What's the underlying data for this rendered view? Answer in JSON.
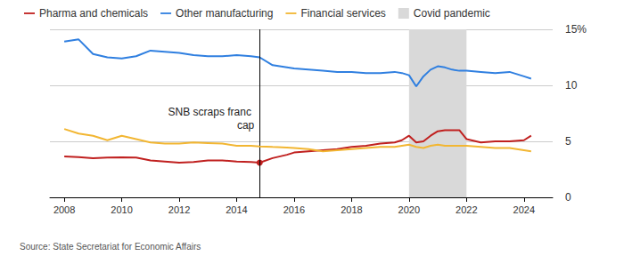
{
  "chart_data": {
    "type": "line",
    "source": "Source: State Secretariat for Economic Affairs",
    "x": [
      2008,
      2008.5,
      2009,
      2009.5,
      2010,
      2010.5,
      2011,
      2011.5,
      2012,
      2012.5,
      2013,
      2013.5,
      2014,
      2014.5,
      2014.8,
      2015.25,
      2015.75,
      2016,
      2016.5,
      2017,
      2017.5,
      2018,
      2018.5,
      2019,
      2019.5,
      2019.75,
      2020,
      2020.25,
      2020.5,
      2020.75,
      2021,
      2021.25,
      2021.5,
      2021.75,
      2022,
      2022.5,
      2023,
      2023.5,
      2024,
      2024.25
    ],
    "series": [
      {
        "name": "Pharma and chemicals",
        "color": "#c0201f",
        "values": [
          3.65,
          3.6,
          3.5,
          3.55,
          3.57,
          3.55,
          3.3,
          3.2,
          3.1,
          3.15,
          3.3,
          3.3,
          3.2,
          3.15,
          3.1,
          3.5,
          3.8,
          4.0,
          4.1,
          4.2,
          4.3,
          4.5,
          4.6,
          4.8,
          4.9,
          5.1,
          5.5,
          4.9,
          5.0,
          5.5,
          5.9,
          6.0,
          6.0,
          6.0,
          5.2,
          4.9,
          5.0,
          5.0,
          5.1,
          5.5
        ]
      },
      {
        "name": "Other manufacturing",
        "color": "#2f7fe0",
        "values": [
          13.9,
          14.1,
          12.8,
          12.5,
          12.4,
          12.6,
          13.1,
          13.0,
          12.9,
          12.7,
          12.6,
          12.6,
          12.7,
          12.6,
          12.5,
          11.8,
          11.6,
          11.5,
          11.4,
          11.3,
          11.2,
          11.2,
          11.1,
          11.1,
          11.2,
          11.1,
          10.9,
          9.9,
          10.8,
          11.4,
          11.7,
          11.6,
          11.4,
          11.3,
          11.3,
          11.2,
          11.1,
          11.2,
          10.8,
          10.6
        ]
      },
      {
        "name": "Financial services",
        "color": "#f2b632",
        "values": [
          6.1,
          5.7,
          5.5,
          5.1,
          5.5,
          5.2,
          4.9,
          4.8,
          4.8,
          4.9,
          4.85,
          4.8,
          4.6,
          4.6,
          4.55,
          4.5,
          4.45,
          4.4,
          4.3,
          4.1,
          4.2,
          4.3,
          4.4,
          4.5,
          4.5,
          4.6,
          4.7,
          4.5,
          4.4,
          4.6,
          4.7,
          4.6,
          4.6,
          4.6,
          4.6,
          4.5,
          4.4,
          4.4,
          4.2,
          4.1
        ]
      }
    ],
    "shaded_regions": [
      {
        "name": "Covid pandemic",
        "x": [
          2020,
          2022
        ],
        "color": "#d9d9d9"
      }
    ],
    "annotations": [
      {
        "text": "SNB scraps franc cap",
        "x": 2014.8,
        "series": "Pharma and chemicals"
      }
    ],
    "xlim": [
      2007.5,
      2025
    ],
    "xticks": [
      2008,
      2010,
      2012,
      2014,
      2016,
      2018,
      2020,
      2022,
      2024
    ],
    "ylim": [
      0,
      15
    ],
    "yticks": [
      0,
      5,
      10,
      {
        "value": 15,
        "label": "15%"
      }
    ],
    "grid": true,
    "legend": "top-left"
  }
}
